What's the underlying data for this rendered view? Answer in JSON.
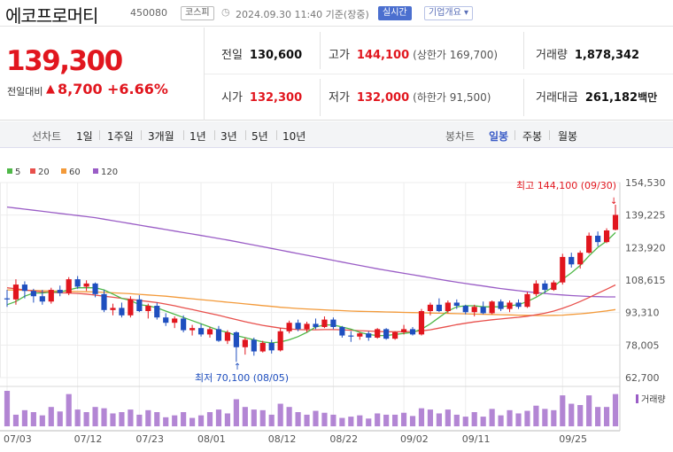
{
  "header": {
    "name": "에코프로머티",
    "code": "450080",
    "market": "코스피",
    "timestamp": "2024.09.30 11:40 기준(장중)",
    "realtime": "실시간",
    "company_info": "기업개요 ▾"
  },
  "quote": {
    "price": "139,300",
    "change_label": "전일대비",
    "change": "8,700",
    "change_pct": "+6.66%",
    "prev_close_label": "전일",
    "prev_close": "130,600",
    "high_label": "고가",
    "high": "144,100",
    "upper_limit": "(상한가 169,700)",
    "volume_label": "거래량",
    "volume": "1,878,342",
    "open_label": "시가",
    "open": "132,300",
    "low_label": "저가",
    "low": "132,000",
    "lower_limit": "(하한가 91,500)",
    "amount_label": "거래대금",
    "amount": "261,182",
    "amount_unit": "백만"
  },
  "periods": {
    "label": "선차트",
    "items": [
      "1일",
      "1주일",
      "3개월",
      "1년",
      "3년",
      "5년",
      "10년"
    ]
  },
  "candle_tabs": {
    "label": "봉차트",
    "items": [
      "일봉",
      "주봉",
      "월봉"
    ],
    "active": "일봉"
  },
  "colors": {
    "up": "#e1161e",
    "down": "#1f4fbf",
    "ma5": "#4fb848",
    "ma20": "#e8504c",
    "ma60": "#f39a3a",
    "ma120": "#9a5dc6"
  },
  "chart_data": {
    "type": "candlestick",
    "legend": [
      "5",
      "20",
      "60",
      "120"
    ],
    "y_ticks": [
      "154,530",
      "139,225",
      "123,920",
      "108,615",
      "93,310",
      "78,005",
      "62,700"
    ],
    "ylim": [
      62700,
      154530
    ],
    "x_labels": [
      "07/03",
      "07/12",
      "07/23",
      "08/01",
      "08/12",
      "08/22",
      "09/02",
      "09/11",
      "09/25"
    ],
    "high_annotation": "최고 144,100 (09/30)",
    "low_annotation": "최저 70,100 (08/05)",
    "volume_label": "거래량",
    "candles": [
      [
        100000,
        104000,
        96000,
        99500
      ],
      [
        99500,
        109000,
        97000,
        106500
      ],
      [
        106500,
        108000,
        100000,
        103500
      ],
      [
        103500,
        104500,
        98000,
        101000
      ],
      [
        101000,
        104000,
        97000,
        98500
      ],
      [
        98500,
        105000,
        97500,
        104000
      ],
      [
        104000,
        106000,
        101000,
        102500
      ],
      [
        102500,
        110000,
        101500,
        109000
      ],
      [
        109000,
        110500,
        104500,
        105500
      ],
      [
        105500,
        108500,
        103500,
        107000
      ],
      [
        107000,
        107500,
        100500,
        102000
      ],
      [
        102000,
        104000,
        93500,
        94500
      ],
      [
        94500,
        97500,
        92000,
        95500
      ],
      [
        95500,
        98000,
        91000,
        92000
      ],
      [
        92000,
        101000,
        91000,
        99500
      ],
      [
        99500,
        101500,
        93500,
        94000
      ],
      [
        94000,
        97500,
        90500,
        96500
      ],
      [
        96500,
        98000,
        90000,
        91000
      ],
      [
        91000,
        93000,
        87000,
        88500
      ],
      [
        88500,
        91500,
        86000,
        90500
      ],
      [
        90500,
        92000,
        84000,
        85000
      ],
      [
        85000,
        87500,
        82500,
        86000
      ],
      [
        86000,
        88000,
        82000,
        83000
      ],
      [
        83000,
        86500,
        81500,
        85500
      ],
      [
        85500,
        87000,
        79500,
        80000
      ],
      [
        80000,
        85000,
        78500,
        84000
      ],
      [
        84000,
        84500,
        70100,
        77000
      ],
      [
        77000,
        81500,
        73500,
        80500
      ],
      [
        80500,
        81500,
        73000,
        75000
      ],
      [
        75000,
        80000,
        74500,
        79000
      ],
      [
        79000,
        80500,
        74000,
        75500
      ],
      [
        75500,
        86000,
        75000,
        84500
      ],
      [
        84500,
        89500,
        83500,
        88500
      ],
      [
        88500,
        90000,
        84500,
        85500
      ],
      [
        85500,
        89000,
        84000,
        88000
      ],
      [
        88000,
        90500,
        85500,
        86500
      ],
      [
        86500,
        91500,
        86000,
        90000
      ],
      [
        90000,
        91000,
        85500,
        86500
      ],
      [
        86500,
        87000,
        81500,
        82500
      ],
      [
        82500,
        84500,
        79500,
        82000
      ],
      [
        82000,
        84000,
        80500,
        83500
      ],
      [
        83500,
        84500,
        80000,
        81500
      ],
      [
        81500,
        86000,
        81000,
        85500
      ],
      [
        85500,
        86000,
        80500,
        81000
      ],
      [
        81000,
        84500,
        80500,
        84000
      ],
      [
        84000,
        87500,
        83000,
        85500
      ],
      [
        85500,
        86500,
        82500,
        83000
      ],
      [
        83000,
        95000,
        82500,
        94000
      ],
      [
        94000,
        98000,
        92000,
        97000
      ],
      [
        97000,
        100000,
        93500,
        94000
      ],
      [
        94000,
        99000,
        93000,
        98000
      ],
      [
        98000,
        99500,
        95000,
        96500
      ],
      [
        96500,
        97000,
        92500,
        93500
      ],
      [
        93500,
        97000,
        91500,
        96000
      ],
      [
        96000,
        98500,
        92500,
        93000
      ],
      [
        93000,
        99000,
        92500,
        98500
      ],
      [
        98500,
        99500,
        94000,
        95000
      ],
      [
        95000,
        99000,
        93500,
        98000
      ],
      [
        98000,
        99500,
        95000,
        96000
      ],
      [
        96000,
        103000,
        95500,
        102000
      ],
      [
        102000,
        108500,
        101000,
        107000
      ],
      [
        107000,
        108500,
        102500,
        104000
      ],
      [
        104000,
        108500,
        103500,
        107500
      ],
      [
        107500,
        121000,
        106500,
        119500
      ],
      [
        119500,
        121500,
        114500,
        116000
      ],
      [
        116000,
        122500,
        114000,
        121500
      ],
      [
        121500,
        131000,
        121000,
        129500
      ],
      [
        129500,
        131500,
        124500,
        126500
      ],
      [
        126500,
        133000,
        126000,
        132000
      ],
      [
        132300,
        144100,
        132000,
        139300
      ]
    ],
    "volumes": [
      55,
      18,
      25,
      22,
      17,
      30,
      23,
      50,
      26,
      22,
      30,
      28,
      20,
      22,
      26,
      18,
      25,
      22,
      14,
      17,
      22,
      13,
      17,
      22,
      26,
      20,
      42,
      30,
      26,
      25,
      18,
      35,
      30,
      22,
      18,
      24,
      21,
      18,
      13,
      15,
      17,
      12,
      20,
      18,
      18,
      21,
      16,
      28,
      26,
      20,
      26,
      18,
      15,
      22,
      15,
      27,
      17,
      25,
      20,
      24,
      32,
      27,
      25,
      48,
      35,
      33,
      48,
      30,
      30,
      50
    ],
    "ma5": [
      97000,
      98500,
      101000,
      102500,
      102500,
      103000,
      103000,
      104000,
      105000,
      105000,
      105000,
      104000,
      102000,
      100000,
      99000,
      97000,
      96500,
      95500,
      94000,
      92500,
      91000,
      89500,
      88000,
      86500,
      85000,
      84000,
      82500,
      81500,
      80500,
      79500,
      79000,
      79500,
      80500,
      82000,
      84000,
      86500,
      87500,
      87500,
      86500,
      85500,
      84000,
      83000,
      82500,
      82500,
      83000,
      83500,
      84000,
      85500,
      88000,
      91000,
      94000,
      96000,
      96500,
      96500,
      96000,
      96000,
      96000,
      96500,
      97000,
      98500,
      100500,
      103000,
      105500,
      109000,
      112000,
      115500,
      120000,
      124000,
      127000,
      131000
    ],
    "ma20": [
      105000,
      104500,
      104000,
      103500,
      103000,
      102800,
      102600,
      102500,
      102300,
      102000,
      101500,
      101000,
      100500,
      100000,
      99500,
      99000,
      98500,
      98000,
      97300,
      96500,
      95600,
      94700,
      93800,
      92900,
      92000,
      91000,
      90000,
      89000,
      88100,
      87300,
      86600,
      86000,
      85600,
      85300,
      85200,
      85200,
      85300,
      85300,
      85200,
      85000,
      84800,
      84600,
      84400,
      84300,
      84300,
      84300,
      84400,
      84700,
      85200,
      86000,
      86800,
      87600,
      88300,
      88900,
      89400,
      89900,
      90300,
      90700,
      91100,
      91600,
      92300,
      93000,
      94000,
      95300,
      96800,
      98500,
      100400,
      102400,
      104300,
      106300
    ],
    "ma60": [
      104000,
      103900,
      103800,
      103700,
      103600,
      103500,
      103400,
      103300,
      103200,
      103100,
      103000,
      102800,
      102600,
      102400,
      102200,
      101900,
      101600,
      101300,
      101000,
      100600,
      100200,
      99800,
      99400,
      99000,
      98600,
      98200,
      97800,
      97400,
      97000,
      96600,
      96200,
      95800,
      95500,
      95200,
      95000,
      94800,
      94600,
      94400,
      94200,
      94000,
      93900,
      93800,
      93700,
      93600,
      93500,
      93400,
      93300,
      93200,
      93100,
      93000,
      92900,
      92800,
      92700,
      92600,
      92500,
      92400,
      92300,
      92200,
      92100,
      92000,
      91900,
      91900,
      92000,
      92100,
      92400,
      92700,
      93100,
      93600,
      94100,
      94700
    ],
    "ma120": [
      143000,
      142500,
      142000,
      141500,
      141000,
      140500,
      140000,
      139500,
      139000,
      138500,
      138000,
      137300,
      136600,
      135900,
      135200,
      134500,
      133800,
      133100,
      132400,
      131700,
      131000,
      130300,
      129600,
      128900,
      128200,
      127500,
      126700,
      125900,
      125100,
      124300,
      123500,
      122700,
      121900,
      121100,
      120300,
      119500,
      118700,
      117900,
      117100,
      116300,
      115500,
      114700,
      113900,
      113200,
      112500,
      111800,
      111100,
      110400,
      109700,
      109000,
      108300,
      107600,
      107000,
      106400,
      105800,
      105200,
      104600,
      104100,
      103600,
      103100,
      102700,
      102300,
      101900,
      101600,
      101300,
      101100,
      100900,
      100800,
      100700,
      100700
    ]
  }
}
